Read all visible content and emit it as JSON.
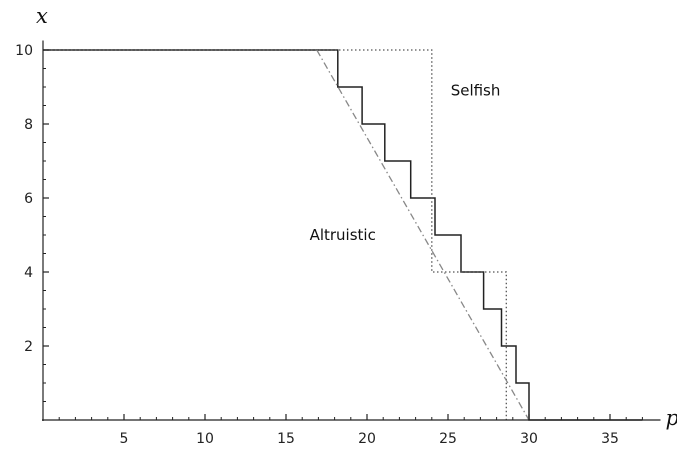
{
  "chart_data": {
    "type": "line",
    "title": "",
    "xlabel": "p",
    "ylabel": "x",
    "xlim": [
      -0.5,
      37.5
    ],
    "ylim": [
      0,
      10.15
    ],
    "xticks": [
      5,
      10,
      15,
      20,
      25,
      30,
      35
    ],
    "yticks": [
      2,
      4,
      6,
      8,
      10
    ],
    "grid": false,
    "legend": "none",
    "annotations": [
      {
        "text": "Selfish",
        "x": 26.7,
        "y": 8.9
      },
      {
        "text": "Altruistic",
        "x": 18.5,
        "y": 5.0
      }
    ],
    "series": [
      {
        "style": "solid",
        "color": "#222222",
        "x": [
          0,
          18.2,
          18.2,
          19.7,
          19.7,
          21.1,
          21.1,
          22.7,
          22.7,
          24.2,
          24.2,
          25.8,
          25.8,
          27.2,
          27.2,
          28.3,
          28.3,
          29.2,
          29.2,
          30.0,
          30.0,
          37.0
        ],
        "y": [
          10,
          10,
          9,
          9,
          8,
          8,
          7,
          7,
          6,
          6,
          5,
          5,
          4,
          4,
          3,
          3,
          2,
          2,
          1,
          1,
          0,
          0
        ]
      },
      {
        "style": "dotted",
        "color": "#555555",
        "x": [
          0,
          24.0,
          24.0,
          28.6,
          28.6
        ],
        "y": [
          10,
          10,
          4,
          4,
          0
        ]
      },
      {
        "style": "dashdot",
        "color": "#888888",
        "x": [
          16.9,
          30.0
        ],
        "y": [
          10,
          0
        ]
      }
    ]
  }
}
